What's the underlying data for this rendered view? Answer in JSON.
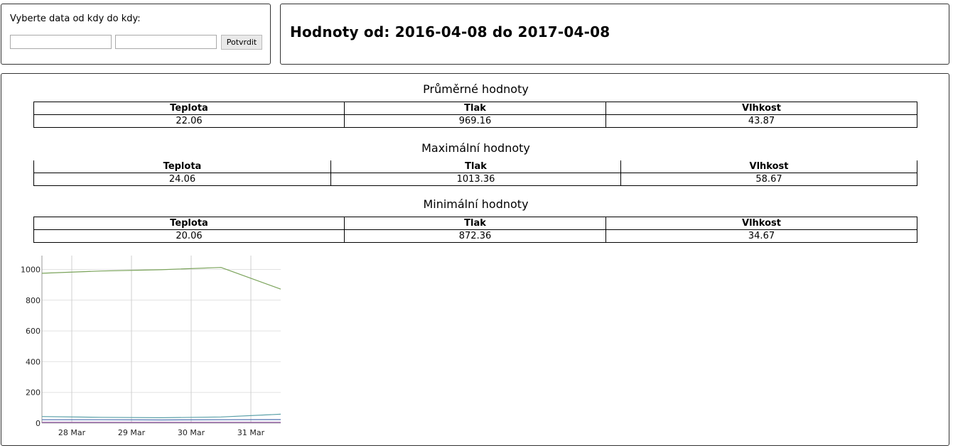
{
  "filter": {
    "prompt": "Vyberte data od kdy do kdy:",
    "from_value": "",
    "to_value": "",
    "confirm_label": "Potvrdit"
  },
  "heading": {
    "title": "Hodnoty od: 2016-04-08 do 2017-04-08"
  },
  "average": {
    "title": "Průměrné hodnoty",
    "headers": [
      "Teplota",
      "Tlak",
      "Vlhkost"
    ],
    "values": [
      "22.06",
      "969.16",
      "43.87"
    ]
  },
  "maximum": {
    "title": "Maximální hodnoty",
    "headers": [
      "Teplota",
      "Tlak",
      "Vlhkost"
    ],
    "values": [
      "24.06",
      "1013.36",
      "58.67"
    ]
  },
  "minimum": {
    "title": "Minimální hodnoty",
    "headers": [
      "Teplota",
      "Tlak",
      "Vlhkost"
    ],
    "values": [
      "20.06",
      "872.36",
      "34.67"
    ]
  },
  "chart_data": {
    "type": "line",
    "x_ticks": [
      "28 Mar",
      "29 Mar",
      "30 Mar",
      "31 Mar"
    ],
    "y_ticks": [
      0,
      200,
      400,
      600,
      800,
      1000
    ],
    "ylim": [
      0,
      1090
    ],
    "xlim": [
      0,
      4
    ],
    "grid": true,
    "series": [
      {
        "color": "#7aa35a",
        "points": [
          [
            0,
            975
          ],
          [
            1,
            990
          ],
          [
            2,
            998
          ],
          [
            3,
            1013
          ],
          [
            4,
            872
          ]
        ]
      },
      {
        "color": "#5aa0a8",
        "points": [
          [
            0,
            43
          ],
          [
            1,
            38
          ],
          [
            2,
            35
          ],
          [
            3,
            40
          ],
          [
            4,
            58
          ]
        ]
      },
      {
        "color": "#4a6fb0",
        "points": [
          [
            0,
            22
          ],
          [
            1,
            22
          ],
          [
            2,
            21
          ],
          [
            3,
            22
          ],
          [
            4,
            23
          ]
        ]
      },
      {
        "color": "#8a4f9e",
        "points": [
          [
            0,
            5
          ],
          [
            1,
            5
          ],
          [
            2,
            5
          ],
          [
            3,
            5
          ],
          [
            4,
            5
          ]
        ]
      }
    ]
  }
}
